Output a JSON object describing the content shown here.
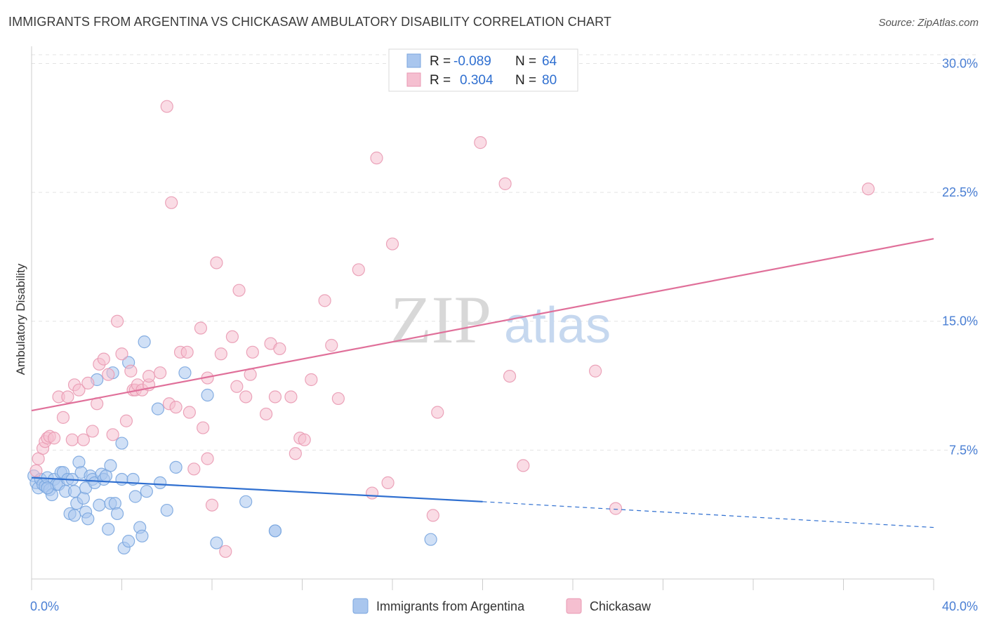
{
  "title": "IMMIGRANTS FROM ARGENTINA VS CHICKASAW AMBULATORY DISABILITY CORRELATION CHART",
  "source": "Source: ZipAtlas.com",
  "watermark": {
    "zip": "ZIP",
    "atlas": "atlas"
  },
  "colors": {
    "blue_fill": "#a9c6ee",
    "blue_stroke": "#7aa6df",
    "blue_line": "#2f6fd0",
    "pink_fill": "#f5bfd0",
    "pink_stroke": "#e99ab3",
    "pink_line": "#e0709a",
    "grid": "#e3e3e3",
    "axis_text": "#4a7fd4"
  },
  "legend": {
    "rows": [
      {
        "r_label": "R =",
        "r_value": "-0.089",
        "n_label": "N =",
        "n_value": "64",
        "color": "blue"
      },
      {
        "r_label": "R =",
        "r_value": "0.304",
        "n_label": "N =",
        "n_value": "80",
        "color": "pink"
      }
    ]
  },
  "bottom_legend": [
    {
      "label": "Immigrants from Argentina",
      "color": "blue"
    },
    {
      "label": "Chickasaw",
      "color": "pink"
    }
  ],
  "chart_data": {
    "type": "scatter",
    "title": "IMMIGRANTS FROM ARGENTINA VS CHICKASAW AMBULATORY DISABILITY CORRELATION CHART",
    "xlabel": "",
    "ylabel": "Ambulatory Disability",
    "xlim": [
      0,
      40
    ],
    "ylim": [
      0,
      31
    ],
    "x_tick_labels": [
      "0.0%",
      "40.0%"
    ],
    "y_ticks": [
      7.5,
      15.0,
      22.5,
      30.0
    ],
    "y_tick_labels": [
      "7.5%",
      "15.0%",
      "22.5%",
      "30.0%"
    ],
    "grid": true,
    "legend_position": "top-center",
    "series": [
      {
        "name": "Immigrants from Argentina",
        "color": "blue",
        "r": -0.089,
        "n": 64,
        "trend": {
          "x0": 0,
          "y0": 5.9,
          "x1": 20,
          "y1": 4.5,
          "x_dash_end": 40,
          "y_dash_end": 3.0
        },
        "points": [
          [
            0.1,
            6.0
          ],
          [
            0.2,
            5.6
          ],
          [
            0.3,
            5.3
          ],
          [
            0.4,
            5.8
          ],
          [
            0.5,
            5.5
          ],
          [
            0.6,
            5.4
          ],
          [
            0.7,
            5.9
          ],
          [
            0.8,
            5.2
          ],
          [
            0.9,
            4.9
          ],
          [
            1.0,
            5.8
          ],
          [
            1.1,
            5.5
          ],
          [
            1.2,
            5.5
          ],
          [
            1.3,
            6.2
          ],
          [
            1.4,
            6.2
          ],
          [
            1.5,
            5.1
          ],
          [
            1.6,
            5.8
          ],
          [
            1.7,
            3.8
          ],
          [
            1.8,
            5.8
          ],
          [
            1.9,
            5.1
          ],
          [
            2.0,
            4.4
          ],
          [
            2.1,
            6.8
          ],
          [
            2.2,
            6.2
          ],
          [
            2.3,
            4.7
          ],
          [
            2.4,
            5.3
          ],
          [
            2.4,
            3.9
          ],
          [
            2.5,
            3.5
          ],
          [
            2.6,
            6.0
          ],
          [
            2.7,
            5.8
          ],
          [
            2.8,
            5.6
          ],
          [
            2.9,
            11.6
          ],
          [
            3.0,
            4.3
          ],
          [
            3.1,
            6.1
          ],
          [
            3.2,
            5.8
          ],
          [
            3.3,
            6.0
          ],
          [
            3.4,
            2.9
          ],
          [
            3.5,
            4.4
          ],
          [
            3.5,
            6.6
          ],
          [
            3.6,
            12.0
          ],
          [
            3.7,
            4.4
          ],
          [
            3.8,
            3.8
          ],
          [
            4.0,
            5.8
          ],
          [
            4.0,
            7.9
          ],
          [
            4.1,
            1.8
          ],
          [
            4.3,
            2.2
          ],
          [
            4.3,
            12.6
          ],
          [
            4.5,
            5.8
          ],
          [
            4.6,
            4.8
          ],
          [
            4.8,
            3.0
          ],
          [
            4.9,
            2.5
          ],
          [
            5.0,
            13.8
          ],
          [
            5.1,
            5.1
          ],
          [
            5.6,
            9.9
          ],
          [
            5.7,
            5.6
          ],
          [
            6.0,
            4.0
          ],
          [
            6.4,
            6.5
          ],
          [
            6.8,
            12.0
          ],
          [
            7.8,
            10.7
          ],
          [
            8.2,
            2.1
          ],
          [
            9.5,
            4.5
          ],
          [
            10.8,
            2.8
          ],
          [
            10.8,
            2.8
          ],
          [
            1.9,
            3.7
          ],
          [
            0.7,
            5.3
          ],
          [
            17.7,
            2.3
          ]
        ]
      },
      {
        "name": "Chickasaw",
        "color": "pink",
        "r": 0.304,
        "n": 80,
        "trend": {
          "x0": 0,
          "y0": 9.8,
          "x1": 40,
          "y1": 19.8
        },
        "points": [
          [
            0.2,
            6.3
          ],
          [
            0.3,
            7.0
          ],
          [
            0.5,
            7.6
          ],
          [
            0.6,
            8.0
          ],
          [
            0.7,
            8.2
          ],
          [
            0.8,
            8.3
          ],
          [
            1.0,
            8.2
          ],
          [
            1.2,
            10.6
          ],
          [
            1.4,
            9.4
          ],
          [
            1.6,
            10.6
          ],
          [
            1.8,
            8.1
          ],
          [
            1.9,
            11.3
          ],
          [
            2.1,
            11.0
          ],
          [
            2.3,
            8.1
          ],
          [
            2.5,
            11.4
          ],
          [
            2.7,
            8.6
          ],
          [
            2.9,
            10.2
          ],
          [
            3.0,
            12.5
          ],
          [
            3.2,
            12.8
          ],
          [
            3.4,
            11.9
          ],
          [
            3.6,
            8.4
          ],
          [
            3.8,
            15.0
          ],
          [
            4.0,
            13.1
          ],
          [
            4.2,
            9.2
          ],
          [
            4.4,
            12.1
          ],
          [
            4.5,
            11.0
          ],
          [
            4.6,
            11.0
          ],
          [
            4.7,
            11.3
          ],
          [
            4.9,
            11.0
          ],
          [
            5.2,
            11.3
          ],
          [
            5.2,
            11.8
          ],
          [
            5.7,
            12.0
          ],
          [
            6.0,
            27.5
          ],
          [
            6.1,
            10.2
          ],
          [
            6.2,
            21.9
          ],
          [
            6.4,
            10.0
          ],
          [
            6.6,
            13.2
          ],
          [
            6.9,
            13.2
          ],
          [
            7.0,
            9.7
          ],
          [
            7.2,
            6.4
          ],
          [
            7.5,
            14.6
          ],
          [
            7.6,
            8.8
          ],
          [
            7.8,
            11.7
          ],
          [
            7.8,
            7.0
          ],
          [
            8.0,
            4.3
          ],
          [
            8.2,
            18.4
          ],
          [
            8.4,
            13.1
          ],
          [
            8.6,
            1.6
          ],
          [
            8.9,
            14.1
          ],
          [
            9.1,
            11.2
          ],
          [
            9.2,
            16.8
          ],
          [
            9.5,
            10.6
          ],
          [
            9.7,
            11.9
          ],
          [
            9.8,
            13.2
          ],
          [
            10.4,
            9.6
          ],
          [
            10.6,
            13.7
          ],
          [
            10.8,
            10.6
          ],
          [
            11.0,
            13.4
          ],
          [
            11.5,
            10.6
          ],
          [
            11.7,
            7.3
          ],
          [
            11.9,
            8.2
          ],
          [
            12.1,
            8.1
          ],
          [
            12.4,
            11.6
          ],
          [
            13.0,
            16.2
          ],
          [
            13.3,
            13.6
          ],
          [
            13.6,
            10.5
          ],
          [
            14.5,
            18.0
          ],
          [
            15.1,
            5.0
          ],
          [
            15.3,
            24.5
          ],
          [
            15.8,
            5.6
          ],
          [
            16.0,
            19.5
          ],
          [
            17.8,
            3.7
          ],
          [
            18.0,
            9.7
          ],
          [
            19.9,
            25.4
          ],
          [
            21.0,
            23.0
          ],
          [
            21.2,
            11.8
          ],
          [
            21.8,
            6.6
          ],
          [
            25.0,
            12.1
          ],
          [
            25.9,
            4.1
          ],
          [
            37.1,
            22.7
          ]
        ]
      }
    ]
  }
}
